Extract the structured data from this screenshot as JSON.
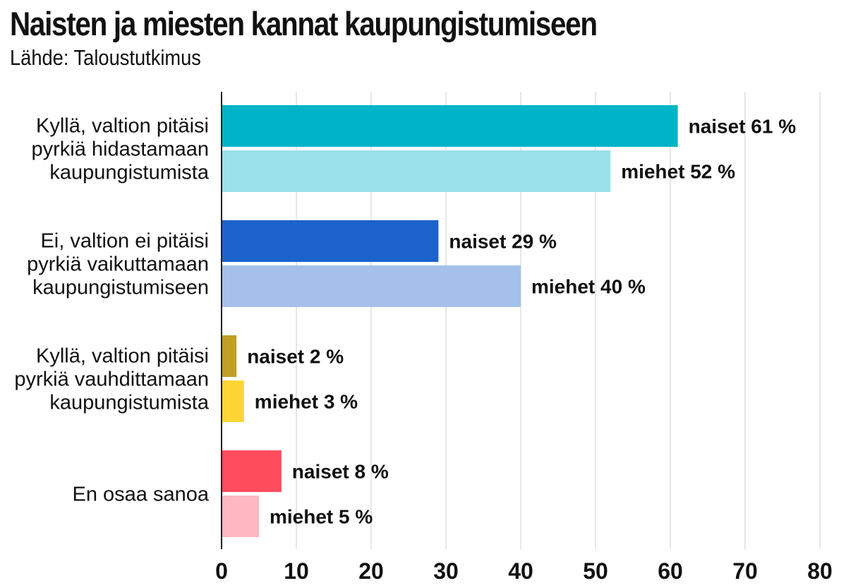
{
  "title": "Naisten ja miesten kannat kaupungistumiseen",
  "subtitle": "Lähde: Taloustutkimus",
  "chart_data": {
    "type": "bar",
    "orientation": "horizontal",
    "title": "Naisten ja miesten kannat kaupungistumiseen",
    "subtitle": "Lähde: Taloustutkimus",
    "xlim": [
      0,
      80
    ],
    "x_ticks": [
      0,
      10,
      20,
      30,
      40,
      50,
      60,
      70,
      80
    ],
    "grid": true,
    "unit": "%",
    "categories": [
      {
        "label_lines": [
          "Kyllä, valtion pitäisi",
          "pyrkiä hidastamaan",
          "kaupungistumista"
        ],
        "bars": [
          {
            "label": "naiset 61 %",
            "value": 61,
            "color": "#00b3c8"
          },
          {
            "label": "miehet 52 %",
            "value": 52,
            "color": "#9be1e9"
          }
        ]
      },
      {
        "label_lines": [
          "Ei, valtion ei pitäisi",
          "pyrkiä vaikuttamaan",
          "kaupungistumiseen"
        ],
        "bars": [
          {
            "label": "naiset 29 %",
            "value": 29,
            "color": "#1c62cc"
          },
          {
            "label": "miehet 40 %",
            "value": 40,
            "color": "#a5c0ea"
          }
        ]
      },
      {
        "label_lines": [
          "Kyllä, valtion pitäisi",
          "pyrkiä vauhdittamaan",
          "kaupungistumista"
        ],
        "bars": [
          {
            "label": "naiset 2 %",
            "value": 2,
            "color": "#c29e25"
          },
          {
            "label": "miehet 3 %",
            "value": 3,
            "color": "#fdd535"
          }
        ]
      },
      {
        "label_lines": [
          "En osaa sanoa"
        ],
        "bars": [
          {
            "label": "naiset 8 %",
            "value": 8,
            "color": "#ff4d5e"
          },
          {
            "label": "miehet 5 %",
            "value": 5,
            "color": "#ffb8bf"
          }
        ]
      }
    ]
  }
}
